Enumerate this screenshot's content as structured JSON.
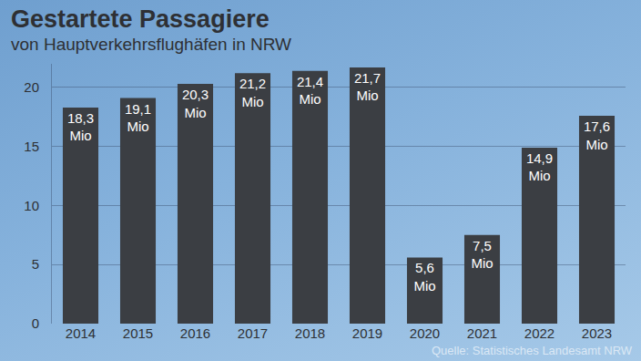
{
  "chart_data": {
    "type": "bar",
    "title": "Gestartete Passagiere",
    "subtitle": "von Hauptverkehrsflughäfen in NRW",
    "source": "Quelle: Statistisches Landesamt NRW",
    "categories": [
      "2014",
      "2015",
      "2016",
      "2017",
      "2018",
      "2019",
      "2020",
      "2021",
      "2022",
      "2023"
    ],
    "values": [
      18.3,
      19.1,
      20.3,
      21.2,
      21.4,
      21.7,
      5.6,
      7.5,
      14.9,
      17.6
    ],
    "value_labels": [
      "18,3 Mio",
      "19,1 Mio",
      "20,3 Mio",
      "21,2 Mio",
      "21,4 Mio",
      "21,7 Mio",
      "5,6 Mio",
      "7,5 Mio",
      "14,9 Mio",
      "17,6 Mio"
    ],
    "color": "#3b3e43",
    "ylim": [
      0,
      22
    ],
    "yticks": [
      0,
      5,
      10,
      15,
      20
    ],
    "grid": true,
    "data_labels": true
  }
}
